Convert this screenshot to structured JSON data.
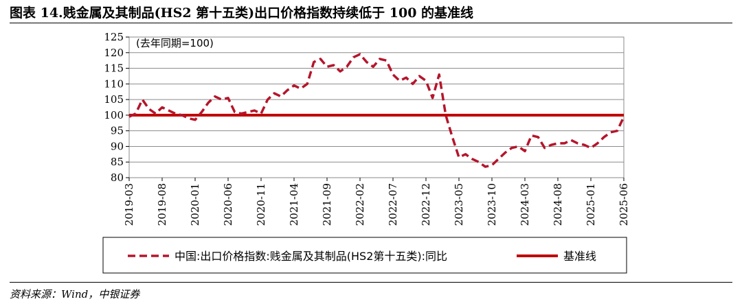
{
  "figure_title": "图表 14.贱金属及其制品(HS2 第十五类)出口价格指数持续低于 100 的基准线",
  "source_note": "资料来源：Wind，中银证券",
  "chart_data": {
    "type": "line",
    "annotation": "(去年同期=100)",
    "ylim": [
      80,
      125
    ],
    "yticks": [
      80,
      85,
      90,
      95,
      100,
      105,
      110,
      115,
      120,
      125
    ],
    "x_start": "2019-03",
    "x_end": "2025-06",
    "xticks": [
      "2019-03",
      "2019-08",
      "2020-01",
      "2020-06",
      "2020-11",
      "2021-04",
      "2021-09",
      "2022-02",
      "2022-07",
      "2022-12",
      "2023-05",
      "2023-10",
      "2024-03",
      "2024-08",
      "2025-01",
      "2025-06"
    ],
    "grid": true,
    "legend_position": "bottom",
    "series": [
      {
        "name": "中国:出口价格指数:贱金属及其制品(HS2第十五类):同比",
        "style": "dashed",
        "color": "#b5152b",
        "x": [
          "2019-03",
          "2019-04",
          "2019-05",
          "2019-06",
          "2019-07",
          "2019-08",
          "2019-09",
          "2019-10",
          "2019-11",
          "2019-12",
          "2020-01",
          "2020-02",
          "2020-03",
          "2020-04",
          "2020-05",
          "2020-06",
          "2020-07",
          "2020-08",
          "2020-09",
          "2020-10",
          "2020-11",
          "2020-12",
          "2021-01",
          "2021-02",
          "2021-03",
          "2021-04",
          "2021-05",
          "2021-06",
          "2021-07",
          "2021-08",
          "2021-09",
          "2021-10",
          "2021-11",
          "2021-12",
          "2022-01",
          "2022-02",
          "2022-03",
          "2022-04",
          "2022-05",
          "2022-06",
          "2022-07",
          "2022-08",
          "2022-09",
          "2022-10",
          "2022-11",
          "2022-12",
          "2023-01",
          "2023-02",
          "2023-03",
          "2023-04",
          "2023-05",
          "2023-06",
          "2023-07",
          "2023-08",
          "2023-09",
          "2023-10",
          "2023-11",
          "2023-12",
          "2024-01",
          "2024-02",
          "2024-03",
          "2024-04",
          "2024-05",
          "2024-06",
          "2024-07",
          "2024-08",
          "2024-09",
          "2024-10",
          "2024-11",
          "2024-12",
          "2025-01",
          "2025-02",
          "2025-03",
          "2025-04",
          "2025-05",
          "2025-06"
        ],
        "values": [
          99.5,
          100.5,
          105,
          102,
          100.5,
          102.5,
          101.5,
          100.5,
          100,
          99,
          98.5,
          101,
          104,
          106,
          105,
          105.5,
          101,
          100.5,
          101,
          101.5,
          100.5,
          105,
          107,
          106,
          108,
          109.5,
          108.5,
          110,
          117,
          118,
          115.5,
          116,
          114,
          115.5,
          118.5,
          119.5,
          117,
          115.5,
          118,
          117.5,
          113,
          111,
          112,
          110,
          112.5,
          111,
          105.5,
          113,
          100,
          93,
          86.5,
          87.5,
          86,
          85,
          83.5,
          84,
          86,
          88,
          89.5,
          90,
          88.5,
          93.5,
          93,
          89.5,
          90.5,
          91,
          91,
          92,
          91,
          90.5,
          89.5,
          91,
          93,
          94.5,
          95,
          99.5
        ]
      },
      {
        "name": "基准线",
        "style": "solid",
        "color": "#c00000",
        "constant": 100
      }
    ]
  }
}
